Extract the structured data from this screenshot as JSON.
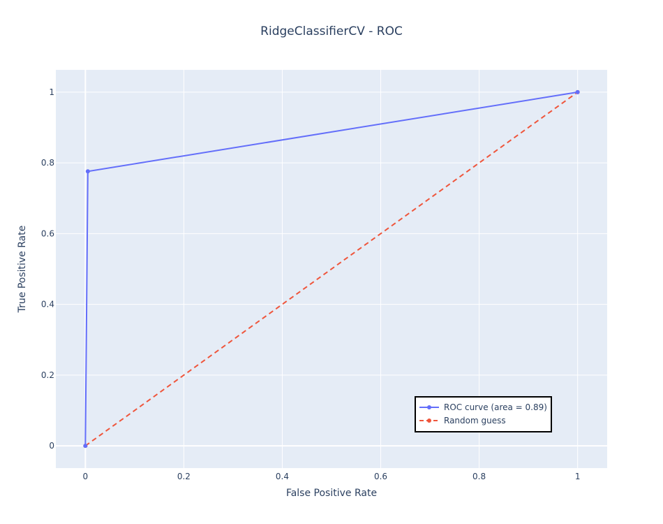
{
  "chart_data": {
    "type": "line",
    "title": "RidgeClassifierCV - ROC",
    "xlabel": "False Positive Rate",
    "ylabel": "True Positive Rate",
    "xlim": [
      -0.06,
      1.06
    ],
    "ylim": [
      -0.063,
      1.063
    ],
    "x_ticks": [
      0,
      0.2,
      0.4,
      0.6,
      0.8,
      1
    ],
    "x_tick_labels": [
      "0",
      "0.2",
      "0.4",
      "0.6",
      "0.8",
      "1"
    ],
    "y_ticks": [
      0,
      0.2,
      0.4,
      0.6,
      0.8,
      1
    ],
    "y_tick_labels": [
      "0",
      "0.2",
      "0.4",
      "0.6",
      "0.8",
      "1"
    ],
    "grid": true,
    "legend_position": "bottom-right",
    "series": [
      {
        "name": "ROC curve (area = 0.89)",
        "x": [
          0,
          0.005,
          1
        ],
        "y": [
          0,
          0.776,
          1
        ],
        "color": "#636efa",
        "dash": "solid",
        "markers": true
      },
      {
        "name": "Random guess",
        "x": [
          0,
          1
        ],
        "y": [
          0,
          1
        ],
        "color": "#ef553b",
        "dash": "dash",
        "markers": true
      }
    ]
  },
  "colors": {
    "plot_background": "#e5ecf6",
    "grid": "#ffffff",
    "text": "#2a3f5f"
  }
}
